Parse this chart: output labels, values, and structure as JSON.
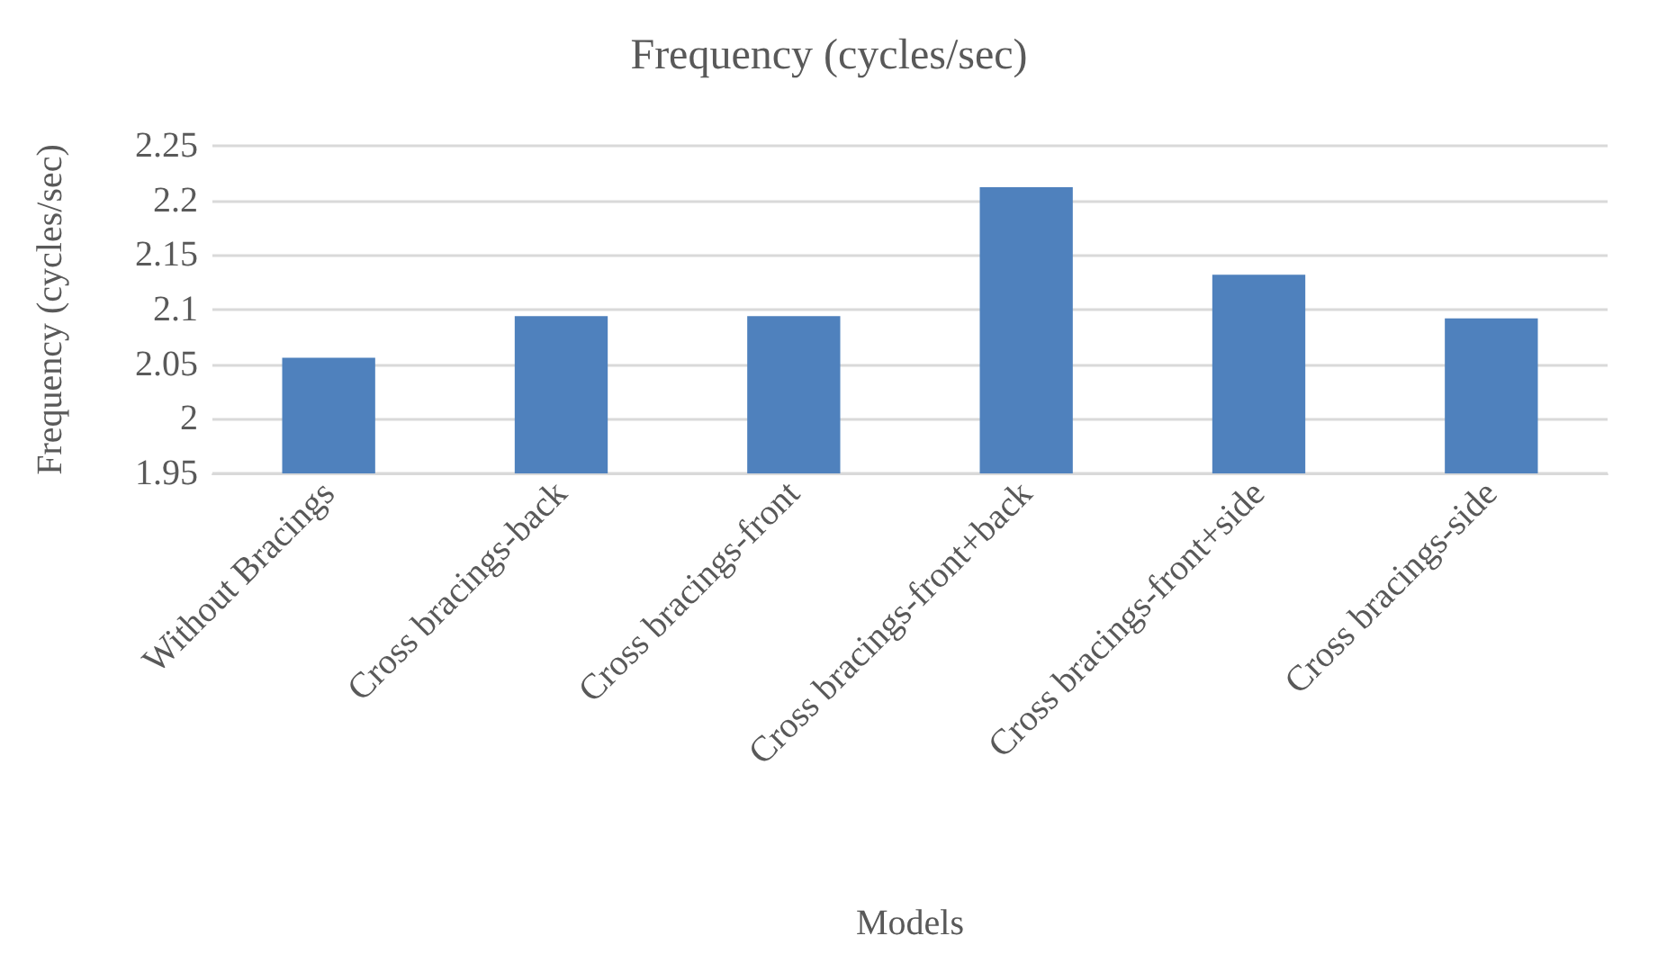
{
  "chart_data": {
    "type": "bar",
    "title": "Frequency (cycles/sec)",
    "xlabel": "Models",
    "ylabel": "Frequency (cycles/sec)",
    "categories": [
      "Without Bracings",
      "Cross bracings-back",
      "Cross bracings-front",
      "Cross bracings-front+back",
      "Cross bracings-front+side",
      "Cross bracings-side"
    ],
    "values": [
      2.056,
      2.094,
      2.094,
      2.212,
      2.132,
      2.092
    ],
    "color": "#4f81bd",
    "ylim": [
      1.95,
      2.25
    ],
    "yticks": [
      1.95,
      2,
      2.05,
      2.1,
      2.15,
      2.2,
      2.25
    ],
    "grid": "y"
  }
}
